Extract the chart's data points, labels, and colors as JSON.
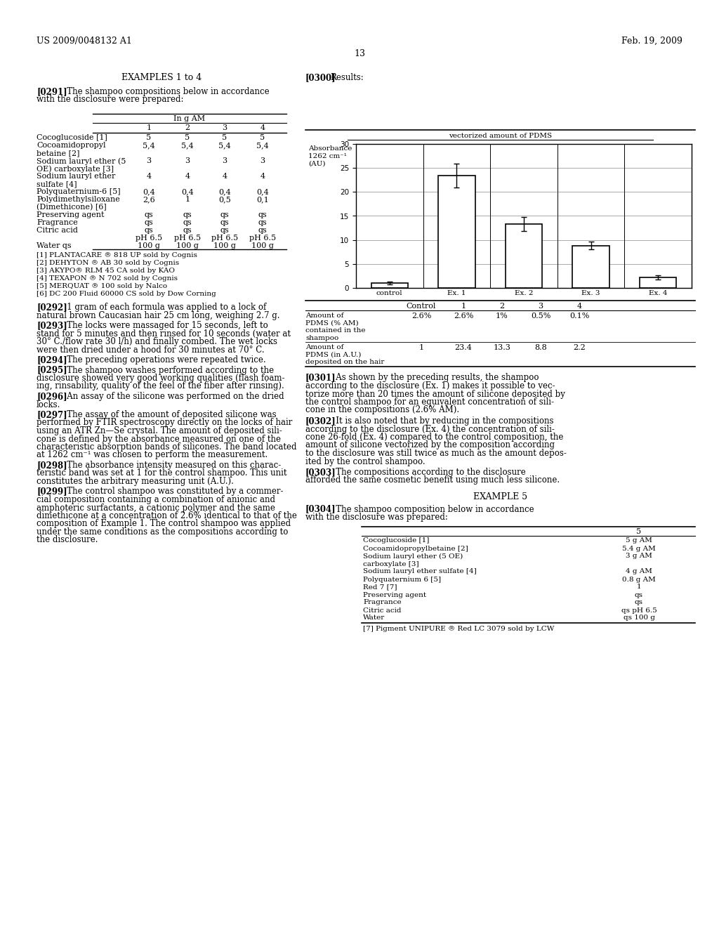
{
  "page_header_left": "US 2009/0048132 A1",
  "page_header_right": "Feb. 19, 2009",
  "page_number": "13",
  "left_section_title": "EXAMPLES 1 to 4",
  "right_section_title_bold": "[0300]",
  "right_section_title_normal": "   Results:",
  "para_291_bold": "[0291]",
  "para_291_normal": "   The shampoo compositions below in accordance\nwith the disclosure were prepared:",
  "table1_title": "In g AM",
  "table1_rows": [
    [
      "Cocoglucoside [1]",
      "5",
      "5",
      "5",
      "5"
    ],
    [
      "Cocoamidopropyl",
      "5,4",
      "5,4",
      "5,4",
      "5,4"
    ],
    [
      "betaine [2]",
      "",
      "",
      "",
      ""
    ],
    [
      "Sodium lauryl ether (5",
      "3",
      "3",
      "3",
      "3"
    ],
    [
      "OE) carboxylate [3]",
      "",
      "",
      "",
      ""
    ],
    [
      "Sodium lauryl ether",
      "4",
      "4",
      "4",
      "4"
    ],
    [
      "sulfate [4]",
      "",
      "",
      "",
      ""
    ],
    [
      "Polyquaternium-6 [5]",
      "0,4",
      "0,4",
      "0,4",
      "0,4"
    ],
    [
      "Polydimethylsiloxane",
      "2,6",
      "1",
      "0,5",
      "0,1"
    ],
    [
      "(Dimethicone) [6]",
      "",
      "",
      "",
      ""
    ],
    [
      "Preserving agent",
      "qs",
      "qs",
      "qs",
      "qs"
    ],
    [
      "Fragrance",
      "qs",
      "qs",
      "qs",
      "qs"
    ],
    [
      "Citric acid",
      "qs",
      "qs",
      "qs",
      "qs"
    ],
    [
      "",
      "pH 6.5",
      "pH 6.5",
      "pH 6.5",
      "pH 6.5"
    ],
    [
      "Water qs",
      "100 g",
      "100 g",
      "100 g",
      "100 g"
    ]
  ],
  "footnotes1": [
    "[1] PLANTACARE ® 818 UP sold by Cognis",
    "[2] DEHYTON ® AB 30 sold by Cognis",
    "[3] AKYPO® RLM 45 CA sold by KAO",
    "[4] TEXAPON ® N 702 sold by Cognis",
    "[5] MERQUAT ® 100 sold by Nalco",
    "[6] DC 200 Fluid 60000 CS sold by Dow Corning"
  ],
  "left_paragraphs": [
    {
      "bold": "[0292]",
      "normal": "   1 gram of each formula was applied to a lock of\nnatural brown Caucasian hair 25 cm long, weighing 2.7 g."
    },
    {
      "bold": "[0293]",
      "normal": "   The locks were massaged for 15 seconds, left to\nstand for 5 minutes and then rinsed for 10 seconds (water at\n30° C./flow rate 30 l/h) and finally combed. The wet locks\nwere then dried under a hood for 30 minutes at 70° C."
    },
    {
      "bold": "[0294]",
      "normal": "   The preceding operations were repeated twice."
    },
    {
      "bold": "[0295]",
      "normal": "   The shampoo washes performed according to the\ndisclosure showed very good working qualities (flash foam-\ning, rinsability, quality of the feel of the fiber after rinsing)."
    },
    {
      "bold": "[0296]",
      "normal": "   An assay of the silicone was performed on the dried\nlocks."
    },
    {
      "bold": "[0297]",
      "normal": "   The assay of the amount of deposited silicone was\nperformed by FTIR spectroscopy directly on the locks of hair\nusing an ATR Zn—Se crystal. The amount of deposited sili-\ncone is defined by the absorbance measured on one of the\ncharacteristic absorption bands of silicones. The band located\nat 1262 cm⁻¹ was chosen to perform the measurement."
    },
    {
      "bold": "[0298]",
      "normal": "   The absorbance intensity measured on this charac-\nteristic band was set at 1 for the control shampoo. This unit\nconstitutes the arbitrary measuring unit (A.U.)."
    },
    {
      "bold": "[0299]",
      "normal": "   The control shampoo was constituted by a commer-\ncial composition containing a combination of anionic and\namphoteric surfactants, a cationic polymer and the same\ndimethicone at a concentration of 2.6% identical to that of the\ncomposition of Example 1. The control shampoo was applied\nunder the same conditions as the compositions according to\nthe disclosure."
    }
  ],
  "chart_title": "vectorized amount of PDMS",
  "chart_ylabel_line1": "Absorbance",
  "chart_ylabel_line2": "1262 cm⁻¹",
  "chart_ylabel_line3": "(AU)",
  "chart_ylim": [
    0,
    30
  ],
  "chart_yticks": [
    0,
    5,
    10,
    15,
    20,
    25,
    30
  ],
  "chart_categories": [
    "control",
    "Ex. 1",
    "Ex. 2",
    "Ex. 3",
    "Ex. 4"
  ],
  "chart_values": [
    1.0,
    23.4,
    13.3,
    8.8,
    2.2
  ],
  "chart_errors": [
    0.3,
    2.5,
    1.5,
    0.8,
    0.4
  ],
  "chart_bar_color": "#ffffff",
  "chart_bar_edgecolor": "#000000",
  "table2_col_headers": [
    "Control",
    "1",
    "2",
    "3",
    "4"
  ],
  "table2_row1_label": [
    "Amount of",
    "PDMS (% AM)",
    "contained in the",
    "shampoo"
  ],
  "table2_row1_vals": [
    "2.6%",
    "2.6%",
    "1%",
    "0.5%",
    "0.1%"
  ],
  "table2_row2_label": [
    "Amount of",
    "PDMS (in A.U.)",
    "deposited on the hair"
  ],
  "table2_row2_vals": [
    "1",
    "23.4",
    "13.3",
    "8.8",
    "2.2"
  ],
  "right_paragraphs": [
    {
      "bold": "[0301]",
      "normal": "   As shown by the preceding results, the shampoo\naccording to the disclosure (Ex. 1) makes it possible to vec-\ntorize more than 20 times the amount of silicone deposited by\nthe control shampoo for an equivalent concentration of sili-\ncone in the compositions (2.6% AM)."
    },
    {
      "bold": "[0302]",
      "normal": "   It is also noted that by reducing in the compositions\naccording to the disclosure (Ex. 4) the concentration of sili-\ncone 26-fold (Ex. 4) compared to the control composition, the\namount of silicone vectorized by the composition according\nto the disclosure was still twice as much as the amount depos-\nited by the control shampoo."
    },
    {
      "bold": "[0303]",
      "normal": "   The compositions according to the disclosure\nafforded the same cosmetic benefit using much less silicone."
    }
  ],
  "example5_title": "EXAMPLE 5",
  "para_304_bold": "[0304]",
  "para_304_normal": "   The shampoo composition below in accordance\nwith the disclosure was prepared:",
  "table3_col_header": "5",
  "table3_rows": [
    [
      "Cocoglucoside [1]",
      "5 g AM"
    ],
    [
      "Cocoamidopropylbetaine [2]",
      "5.4 g AM"
    ],
    [
      "Sodium lauryl ether (5 OE)",
      "3 g AM"
    ],
    [
      "carboxylate [3]",
      ""
    ],
    [
      "Sodium lauryl ether sulfate [4]",
      "4 g AM"
    ],
    [
      "Polyquaternium 6 [5]",
      "0.8 g AM"
    ],
    [
      "Red 7 [7]",
      "1"
    ],
    [
      "Preserving agent",
      "qs"
    ],
    [
      "Fragrance",
      "qs"
    ],
    [
      "Citric acid",
      "qs pH 6.5"
    ],
    [
      "Water",
      "qs 100 g"
    ]
  ],
  "footnote_table3": "[7] Pigment UNIPURE ® Red LC 3079 sold by LCW",
  "bg_color": "#ffffff",
  "text_color": "#000000"
}
